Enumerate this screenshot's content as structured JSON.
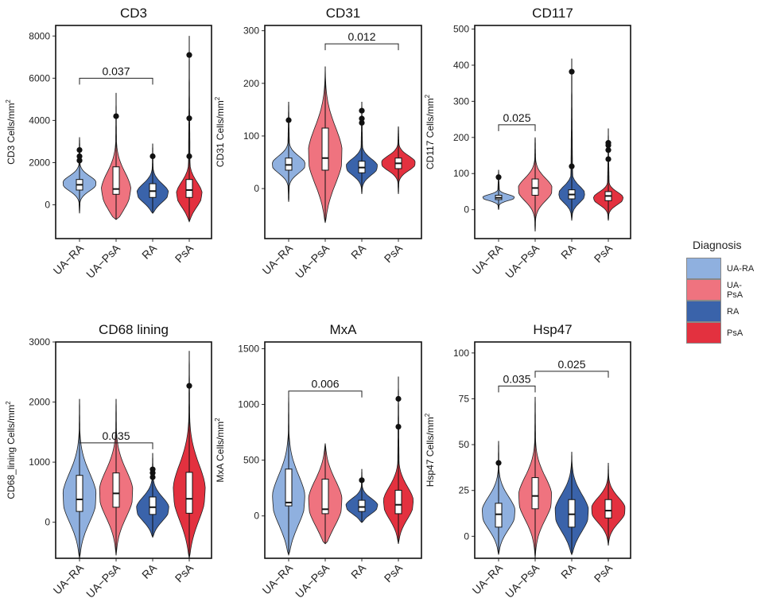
{
  "figure": {
    "legend_title": "Diagnosis",
    "colors": {
      "UA-RA": "#8fb0df",
      "UA-PsA": "#ef737f",
      "RA": "#3a63aa",
      "PsA": "#e3313f"
    }
  },
  "chart_data": [
    {
      "type": "violin",
      "title": "CD3",
      "ylabel": "CD3 Cells/mm",
      "ylabel_sup": "2",
      "ylim": [
        -1600,
        8500
      ],
      "yticks": [
        0,
        2000,
        4000,
        6000,
        8000
      ],
      "ytick_labels": [
        "0",
        "2000",
        "4000",
        "6000",
        "8000"
      ],
      "categories": [
        "UA−RA",
        "UA−PsA",
        "RA",
        "PsA"
      ],
      "series": [
        {
          "name": "UA-RA",
          "min": -400,
          "max": 3200,
          "q1": 700,
          "median": 950,
          "q3": 1200,
          "mode": 1000,
          "outliers": [
            2100,
            2300,
            2600
          ]
        },
        {
          "name": "UA-PsA",
          "min": -700,
          "max": 5300,
          "q1": 500,
          "median": 750,
          "q3": 1800,
          "mode": 500,
          "outliers": [
            4200
          ]
        },
        {
          "name": "RA",
          "min": -400,
          "max": 2900,
          "q1": 350,
          "median": 650,
          "q3": 1000,
          "mode": 500,
          "outliers": [
            2300
          ]
        },
        {
          "name": "PsA",
          "min": -800,
          "max": 8000,
          "q1": 350,
          "median": 700,
          "q3": 1200,
          "mode": 400,
          "outliers": [
            2300,
            4100,
            7100
          ]
        }
      ],
      "comparisons": [
        {
          "from": 0,
          "to": 2,
          "y": 6000,
          "label": "0.037"
        }
      ]
    },
    {
      "type": "violin",
      "title": "CD31",
      "ylabel": "CD31 Cells/mm",
      "ylabel_sup": "2",
      "ylim": [
        -95,
        310
      ],
      "yticks": [
        0,
        100,
        200,
        300
      ],
      "ytick_labels": [
        "0",
        "100",
        "200",
        "300"
      ],
      "categories": [
        "UA−RA",
        "UA−PsA",
        "RA",
        "PsA"
      ],
      "series": [
        {
          "name": "UA-RA",
          "min": -25,
          "max": 165,
          "q1": 35,
          "median": 45,
          "q3": 58,
          "mode": 45,
          "outliers": [
            130
          ]
        },
        {
          "name": "UA-PsA",
          "min": -65,
          "max": 232,
          "q1": 35,
          "median": 58,
          "q3": 115,
          "mode": 60,
          "outliers": []
        },
        {
          "name": "RA",
          "min": -10,
          "max": 165,
          "q1": 30,
          "median": 40,
          "q3": 52,
          "mode": 40,
          "outliers": [
            125,
            133,
            148
          ]
        },
        {
          "name": "PsA",
          "min": -10,
          "max": 118,
          "q1": 38,
          "median": 48,
          "q3": 58,
          "mode": 48,
          "outliers": []
        }
      ],
      "comparisons": [
        {
          "from": 1,
          "to": 3,
          "y": 275,
          "label": "0.012"
        }
      ]
    },
    {
      "type": "violin",
      "title": "CD117",
      "ylabel": "CD117 Cells/mm",
      "ylabel_sup": "2",
      "ylim": [
        -80,
        510
      ],
      "yticks": [
        0,
        100,
        200,
        300,
        400,
        500
      ],
      "ytick_labels": [
        "0",
        "100",
        "200",
        "300",
        "400",
        "500"
      ],
      "categories": [
        "UA−RA",
        "UA−PsA",
        "RA",
        "PsA"
      ],
      "series": [
        {
          "name": "UA-RA",
          "min": 0,
          "max": 110,
          "q1": 28,
          "median": 33,
          "q3": 40,
          "mode": 33,
          "outliers": [
            90
          ]
        },
        {
          "name": "UA-PsA",
          "min": -60,
          "max": 200,
          "q1": 40,
          "median": 60,
          "q3": 85,
          "mode": 55,
          "outliers": []
        },
        {
          "name": "RA",
          "min": -30,
          "max": 418,
          "q1": 30,
          "median": 42,
          "q3": 55,
          "mode": 40,
          "outliers": [
            120,
            382
          ]
        },
        {
          "name": "PsA",
          "min": -30,
          "max": 225,
          "q1": 25,
          "median": 38,
          "q3": 50,
          "mode": 30,
          "outliers": [
            140,
            165,
            178,
            185
          ]
        }
      ],
      "comparisons": [
        {
          "from": 0,
          "to": 1,
          "y": 235,
          "label": "0.025"
        }
      ]
    },
    {
      "type": "violin",
      "title": "CD68 lining",
      "ylabel": "CD68_lining Cells/mm",
      "ylabel_sup": "2",
      "ylim": [
        -600,
        3000
      ],
      "yticks": [
        0,
        1000,
        2000,
        3000
      ],
      "ytick_labels": [
        "0",
        "1000",
        "2000",
        "3000"
      ],
      "categories": [
        "UA−RA",
        "UA−PsA",
        "RA",
        "PsA"
      ],
      "series": [
        {
          "name": "UA-RA",
          "min": -600,
          "max": 2050,
          "q1": 180,
          "median": 380,
          "q3": 780,
          "mode": 380,
          "outliers": []
        },
        {
          "name": "UA-PsA",
          "min": -550,
          "max": 2050,
          "q1": 250,
          "median": 480,
          "q3": 820,
          "mode": 450,
          "outliers": []
        },
        {
          "name": "RA",
          "min": -250,
          "max": 1150,
          "q1": 130,
          "median": 250,
          "q3": 420,
          "mode": 200,
          "outliers": [
            750,
            820,
            880
          ]
        },
        {
          "name": "PsA",
          "min": -600,
          "max": 2850,
          "q1": 150,
          "median": 390,
          "q3": 830,
          "mode": 450,
          "outliers": [
            2270
          ]
        }
      ],
      "comparisons": [
        {
          "from": 0,
          "to": 2,
          "y": 1320,
          "label": "0.035"
        }
      ]
    },
    {
      "type": "violin",
      "title": "MxA",
      "ylabel": "MxA Cells/mm",
      "ylabel_sup": "2",
      "ylim": [
        -380,
        1560
      ],
      "yticks": [
        0,
        500,
        1000,
        1500
      ],
      "ytick_labels": [
        "0",
        "500",
        "1000",
        "1500"
      ],
      "categories": [
        "UA−RA",
        "UA−PsA",
        "RA",
        "PsA"
      ],
      "series": [
        {
          "name": "UA-RA",
          "min": -350,
          "max": 1100,
          "q1": 90,
          "median": 120,
          "q3": 420,
          "mode": 120,
          "outliers": []
        },
        {
          "name": "UA-PsA",
          "min": -250,
          "max": 650,
          "q1": 20,
          "median": 60,
          "q3": 330,
          "mode": 100,
          "outliers": []
        },
        {
          "name": "RA",
          "min": -60,
          "max": 420,
          "q1": 40,
          "median": 80,
          "q3": 140,
          "mode": 80,
          "outliers": [
            320
          ]
        },
        {
          "name": "PsA",
          "min": -250,
          "max": 1250,
          "q1": 20,
          "median": 100,
          "q3": 230,
          "mode": 100,
          "outliers": [
            800,
            1050
          ]
        }
      ],
      "comparisons": [
        {
          "from": 0,
          "to": 2,
          "y": 1120,
          "label": "0.006"
        }
      ]
    },
    {
      "type": "violin",
      "title": "Hsp47",
      "ylabel": "Hsp47 Cells/mm",
      "ylabel_sup": "2",
      "ylim": [
        -12,
        106
      ],
      "yticks": [
        0,
        25,
        50,
        75,
        100
      ],
      "ytick_labels": [
        "0",
        "25",
        "50",
        "75",
        "100"
      ],
      "categories": [
        "UA−RA",
        "UA−PsA",
        "RA",
        "PsA"
      ],
      "series": [
        {
          "name": "UA-RA",
          "min": -10,
          "max": 52,
          "q1": 5,
          "median": 12,
          "q3": 18,
          "mode": 12,
          "outliers": [
            40
          ]
        },
        {
          "name": "UA-PsA",
          "min": -12,
          "max": 76,
          "q1": 15,
          "median": 22,
          "q3": 32,
          "mode": 20,
          "outliers": []
        },
        {
          "name": "RA",
          "min": -10,
          "max": 46,
          "q1": 5,
          "median": 12,
          "q3": 20,
          "mode": 12,
          "outliers": []
        },
        {
          "name": "PsA",
          "min": -5,
          "max": 40,
          "q1": 10,
          "median": 14,
          "q3": 20,
          "mode": 14,
          "outliers": []
        }
      ],
      "comparisons": [
        {
          "from": 0,
          "to": 1,
          "y": 82,
          "label": "0.035"
        },
        {
          "from": 1,
          "to": 3,
          "y": 90,
          "label": "0.025"
        }
      ]
    }
  ]
}
